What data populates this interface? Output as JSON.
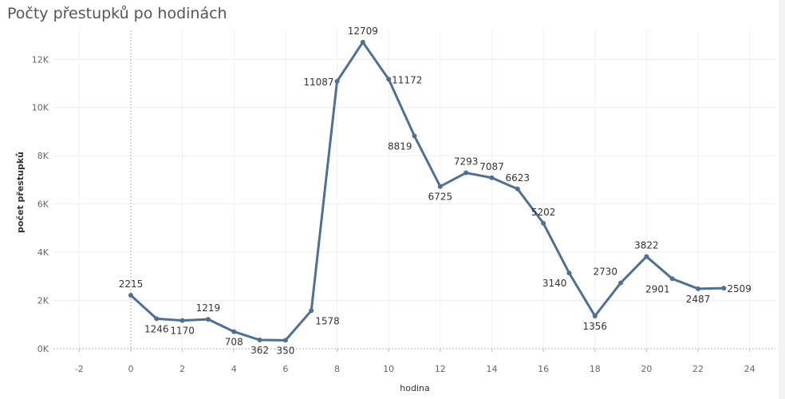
{
  "chart_data": {
    "type": "line",
    "title": "Počty přestupků po hodinách",
    "xlabel": "hodina",
    "ylabel": "počet přestupků",
    "xlim": [
      -3,
      25
    ],
    "ylim": [
      0,
      13200
    ],
    "x_ticks": [
      -2,
      0,
      2,
      4,
      6,
      8,
      10,
      12,
      14,
      16,
      18,
      20,
      22,
      24
    ],
    "x_tick_labels": [
      "-2",
      "0",
      "2",
      "4",
      "6",
      "8",
      "10",
      "12",
      "14",
      "16",
      "18",
      "20",
      "22",
      "24"
    ],
    "y_ticks": [
      0,
      2000,
      4000,
      6000,
      8000,
      10000,
      12000
    ],
    "y_tick_labels": [
      "0K",
      "2K",
      "4K",
      "6K",
      "8K",
      "10K",
      "12K"
    ],
    "grid": true,
    "color": "#4e7096",
    "x": [
      0,
      1,
      2,
      3,
      4,
      5,
      6,
      7,
      8,
      9,
      10,
      11,
      12,
      13,
      14,
      15,
      16,
      17,
      18,
      19,
      20,
      21,
      22,
      23
    ],
    "values": [
      2215,
      1246,
      1170,
      1219,
      708,
      362,
      350,
      1578,
      11087,
      12709,
      11172,
      8819,
      6725,
      7293,
      7087,
      6623,
      5202,
      3140,
      1356,
      2730,
      3822,
      2901,
      2487,
      2509
    ],
    "data_labels": [
      "2215",
      "1246",
      "1170",
      "1219",
      "708",
      "362",
      "350",
      "1578",
      "11087",
      "12709",
      "11172",
      "8819",
      "6725",
      "7293",
      "7087",
      "6623",
      "5202",
      "3140",
      "1356",
      "2730",
      "3822",
      "2901",
      "2487",
      "2509"
    ],
    "label_positions": [
      "above",
      "below",
      "below",
      "above",
      "below",
      "below",
      "below",
      "below-right",
      "left",
      "above",
      "right",
      "below-left",
      "below",
      "above",
      "above",
      "above",
      "above",
      "below-left",
      "below",
      "above-left",
      "above",
      "below-left",
      "below",
      "right"
    ]
  }
}
